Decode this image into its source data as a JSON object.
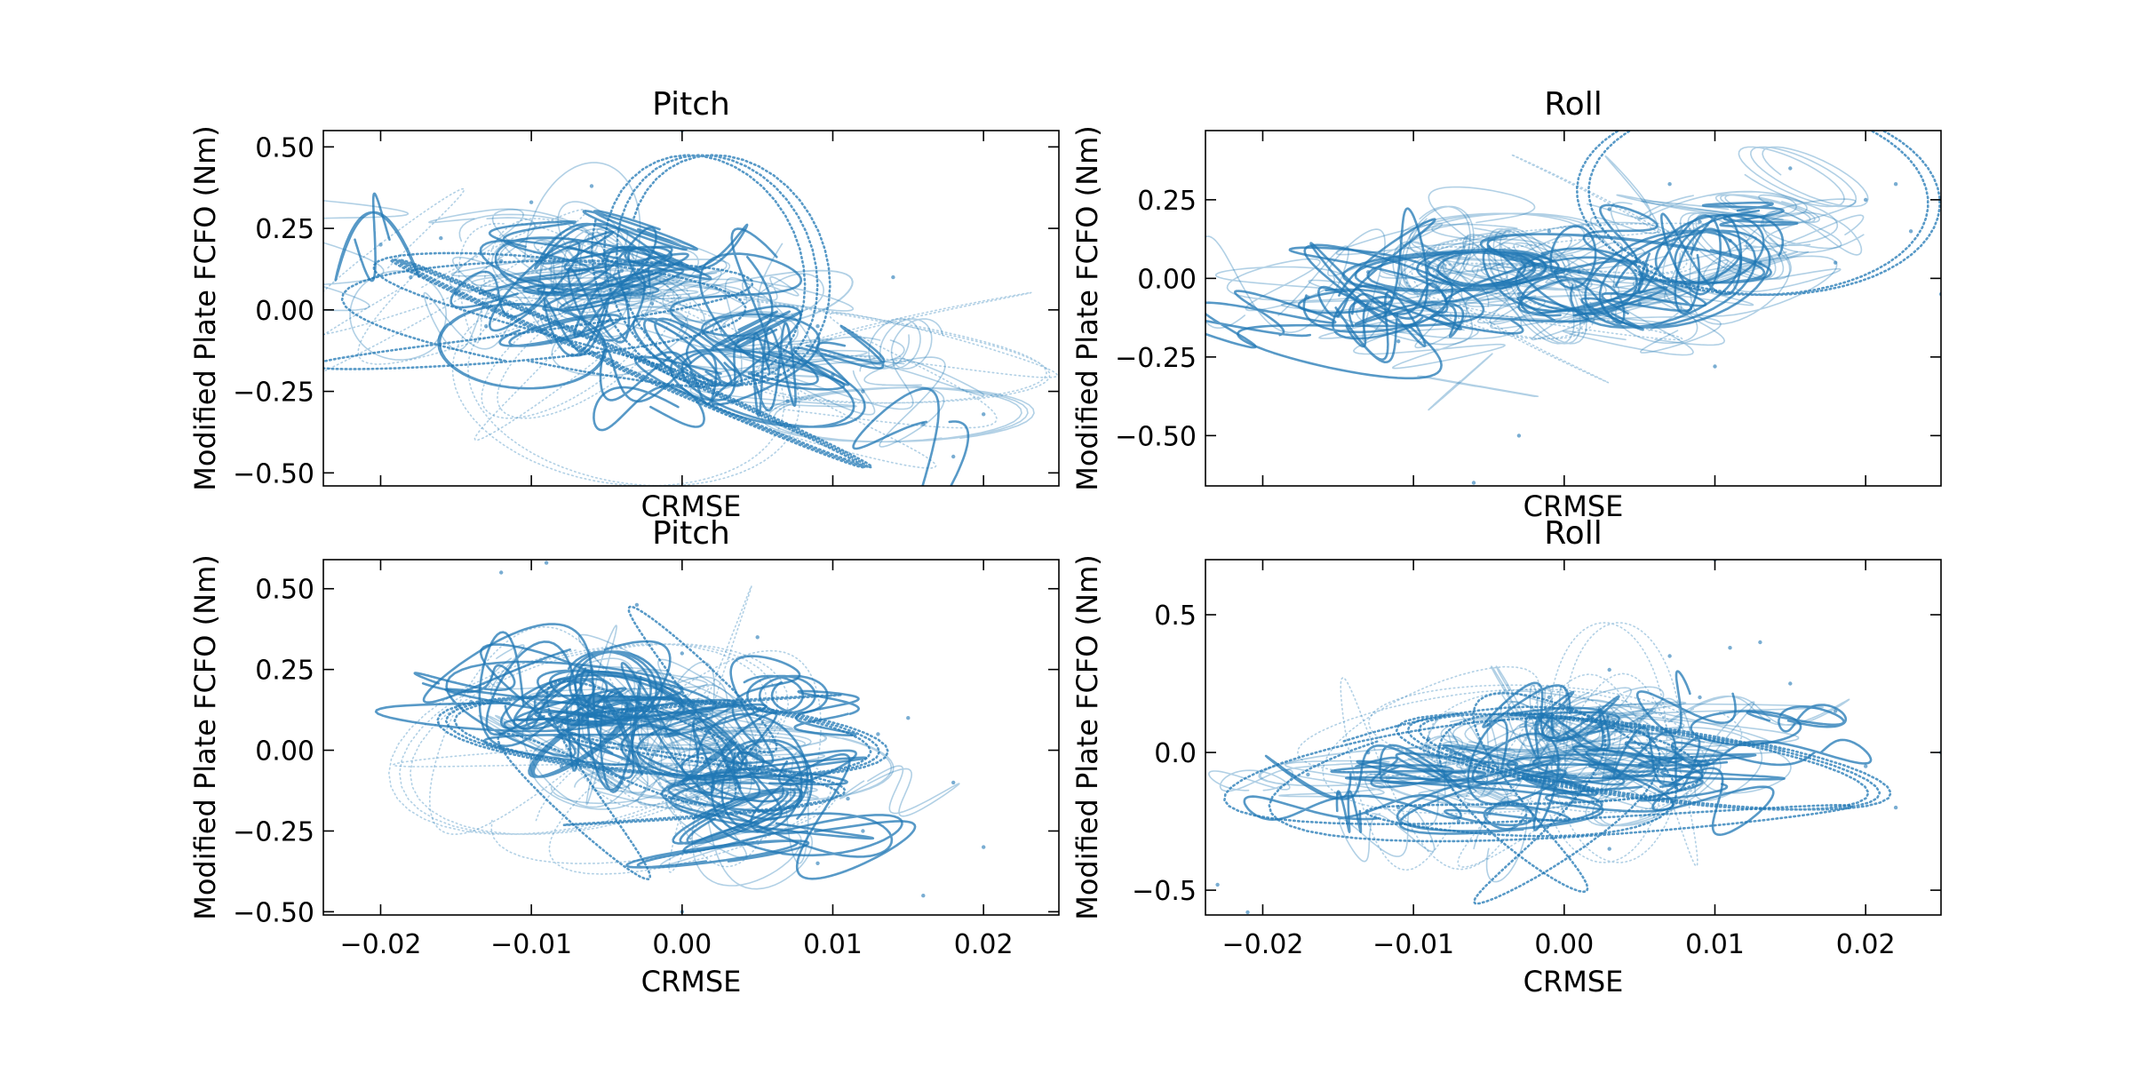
{
  "figure": {
    "background": "#ffffff",
    "series_color": "#1f77b4"
  },
  "chart_data": [
    {
      "id": "top-left",
      "type": "scatter",
      "title": "Pitch",
      "xlabel": "CRMSE",
      "ylabel": "Modified Plate FCFO (Nm)",
      "xlim": [
        -0.0238,
        0.025
      ],
      "ylim": [
        -0.54,
        0.55
      ],
      "xticks": [
        -0.02,
        -0.01,
        0.0,
        0.01,
        0.02
      ],
      "xtick_labels": [],
      "yticks": [
        -0.5,
        -0.25,
        0.0,
        0.25,
        0.5
      ],
      "ytick_labels": [
        "−0.50",
        "−0.25",
        "0.00",
        "0.25",
        "0.50"
      ],
      "grid": false,
      "legend": false,
      "trend": {
        "x_mean": -0.003,
        "y_mean": 0.0,
        "slope": -10.0,
        "spread_x": 0.0082,
        "spread_y": 0.13
      },
      "points": [
        [
          -0.02,
          0.2
        ],
        [
          -0.018,
          0.1
        ],
        [
          -0.016,
          0.22
        ],
        [
          -0.015,
          0.05
        ],
        [
          -0.013,
          -0.05
        ],
        [
          -0.012,
          0.15
        ],
        [
          -0.01,
          0.33
        ],
        [
          -0.009,
          0.05
        ],
        [
          -0.008,
          -0.1
        ],
        [
          -0.006,
          0.38
        ],
        [
          -0.004,
          0.12
        ],
        [
          -0.002,
          0.02
        ],
        [
          0.0,
          -0.05
        ],
        [
          0.002,
          -0.12
        ],
        [
          0.004,
          0.05
        ],
        [
          0.005,
          -0.2
        ],
        [
          0.007,
          -0.28
        ],
        [
          0.009,
          -0.05
        ],
        [
          0.01,
          -0.2
        ],
        [
          0.012,
          -0.25
        ],
        [
          0.014,
          0.1
        ],
        [
          0.016,
          -0.35
        ],
        [
          0.018,
          -0.45
        ],
        [
          0.0,
          0.55
        ],
        [
          0.02,
          -0.32
        ]
      ]
    },
    {
      "id": "top-right",
      "type": "scatter",
      "title": "Roll",
      "xlabel": "CRMSE",
      "ylabel": "Modified Plate FCFO (Nm)",
      "xlim": [
        -0.0238,
        0.025
      ],
      "ylim": [
        -0.66,
        0.47
      ],
      "xticks": [
        -0.02,
        -0.01,
        0.0,
        0.01,
        0.02
      ],
      "xtick_labels": [],
      "yticks": [
        -0.5,
        -0.25,
        0.0,
        0.25
      ],
      "ytick_labels": [
        "−0.50",
        "−0.25",
        "0.00",
        "0.25"
      ],
      "grid": false,
      "legend": false,
      "trend": {
        "x_mean": -0.002,
        "y_mean": -0.02,
        "slope": 6.0,
        "spread_x": 0.0082,
        "spread_y": 0.1
      },
      "points": [
        [
          -0.017,
          -0.06
        ],
        [
          -0.015,
          -0.12
        ],
        [
          -0.013,
          0.02
        ],
        [
          -0.011,
          -0.2
        ],
        [
          -0.009,
          0.05
        ],
        [
          -0.007,
          -0.15
        ],
        [
          -0.005,
          0.1
        ],
        [
          -0.003,
          -0.05
        ],
        [
          -0.001,
          0.15
        ],
        [
          0.001,
          0.02
        ],
        [
          0.003,
          0.22
        ],
        [
          0.005,
          -0.08
        ],
        [
          0.007,
          0.3
        ],
        [
          0.009,
          0.18
        ],
        [
          0.011,
          0.12
        ],
        [
          0.013,
          0.05
        ],
        [
          0.015,
          0.35
        ],
        [
          0.018,
          0.05
        ],
        [
          0.02,
          0.25
        ],
        [
          0.022,
          0.3
        ],
        [
          0.023,
          0.15
        ],
        [
          0.025,
          -0.05
        ],
        [
          -0.003,
          -0.5
        ],
        [
          -0.006,
          -0.65
        ],
        [
          0.01,
          -0.28
        ]
      ]
    },
    {
      "id": "bottom-left",
      "type": "scatter",
      "title": "Pitch",
      "xlabel": "CRMSE",
      "ylabel": "Modified Plate FCFO (Nm)",
      "xlim": [
        -0.0238,
        0.025
      ],
      "ylim": [
        -0.51,
        0.59
      ],
      "xticks": [
        -0.02,
        -0.01,
        0.0,
        0.01,
        0.02
      ],
      "xtick_labels": [
        "−0.02",
        "−0.01",
        "0.00",
        "0.01",
        "0.02"
      ],
      "yticks": [
        -0.5,
        -0.25,
        0.0,
        0.25,
        0.5
      ],
      "ytick_labels": [
        "−0.50",
        "−0.25",
        "0.00",
        "0.25",
        "0.50"
      ],
      "grid": false,
      "legend": false,
      "trend": {
        "x_mean": -0.001,
        "y_mean": 0.0,
        "slope": -12.0,
        "spread_x": 0.0065,
        "spread_y": 0.12
      },
      "points": [
        [
          -0.014,
          0.15
        ],
        [
          -0.012,
          0.05
        ],
        [
          -0.01,
          0.1
        ],
        [
          -0.008,
          -0.05
        ],
        [
          -0.006,
          0.25
        ],
        [
          -0.004,
          -0.1
        ],
        [
          -0.002,
          0.05
        ],
        [
          0.0,
          0.3
        ],
        [
          0.001,
          -0.15
        ],
        [
          0.003,
          -0.05
        ],
        [
          0.005,
          -0.25
        ],
        [
          0.007,
          -0.1
        ],
        [
          0.009,
          -0.35
        ],
        [
          0.011,
          -0.15
        ],
        [
          0.012,
          -0.25
        ],
        [
          0.013,
          0.05
        ],
        [
          0.015,
          0.1
        ],
        [
          0.018,
          -0.1
        ],
        [
          0.02,
          -0.3
        ],
        [
          0.016,
          -0.45
        ],
        [
          -0.012,
          0.55
        ],
        [
          -0.009,
          0.58
        ],
        [
          -0.003,
          0.45
        ],
        [
          0.0,
          -0.5
        ],
        [
          0.005,
          0.35
        ]
      ]
    },
    {
      "id": "bottom-right",
      "type": "scatter",
      "title": "Roll",
      "xlabel": "CRMSE",
      "ylabel": "Modified Plate FCFO (Nm)",
      "xlim": [
        -0.0238,
        0.025
      ],
      "ylim": [
        -0.59,
        0.7
      ],
      "xticks": [
        -0.02,
        -0.01,
        0.0,
        0.01,
        0.02
      ],
      "xtick_labels": [
        "−0.02",
        "−0.01",
        "0.00",
        "0.01",
        "0.02"
      ],
      "yticks": [
        -0.5,
        0.0,
        0.5
      ],
      "ytick_labels": [
        "−0.5",
        "0.0",
        "0.5"
      ],
      "grid": false,
      "legend": false,
      "trend": {
        "x_mean": -0.001,
        "y_mean": -0.02,
        "slope": 7.0,
        "spread_x": 0.0075,
        "spread_y": 0.1
      },
      "points": [
        [
          -0.017,
          -0.08
        ],
        [
          -0.015,
          -0.15
        ],
        [
          -0.013,
          0.0
        ],
        [
          -0.011,
          -0.2
        ],
        [
          -0.009,
          0.05
        ],
        [
          -0.007,
          -0.25
        ],
        [
          -0.005,
          0.1
        ],
        [
          -0.003,
          -0.1
        ],
        [
          -0.001,
          0.2
        ],
        [
          0.001,
          0.05
        ],
        [
          0.003,
          0.3
        ],
        [
          0.005,
          -0.05
        ],
        [
          0.007,
          0.35
        ],
        [
          0.009,
          0.2
        ],
        [
          0.011,
          0.38
        ],
        [
          0.013,
          0.4
        ],
        [
          0.015,
          0.25
        ],
        [
          0.018,
          0.15
        ],
        [
          0.02,
          -0.05
        ],
        [
          0.022,
          -0.2
        ],
        [
          0.025,
          0.0
        ],
        [
          -0.023,
          -0.48
        ],
        [
          -0.021,
          -0.58
        ],
        [
          0.01,
          0.7
        ],
        [
          0.003,
          -0.35
        ]
      ]
    }
  ]
}
